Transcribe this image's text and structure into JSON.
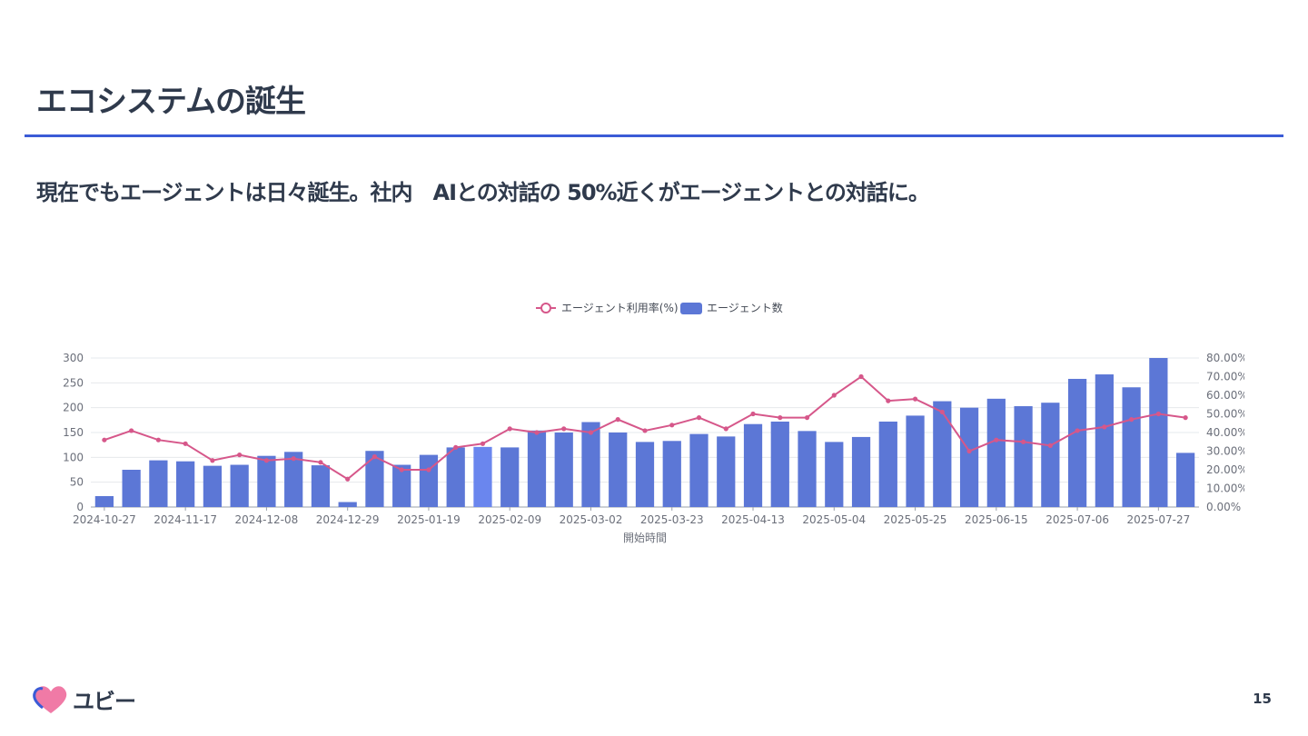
{
  "slide": {
    "title": "エコシステムの誕生",
    "subtitle": "現在でもエージェントは日々誕生。社内　AIとの対話の 50%近くがエージェントとの対話に。",
    "page_number": "15",
    "logo_text": "ユビー"
  },
  "colors": {
    "accent": "#3b5bd6",
    "bar": "#5c77d6",
    "bar_highlight": "#6a86ee",
    "line": "#d6578a",
    "text": "#2f3a4c"
  },
  "chart_data": {
    "type": "bar",
    "x": [
      "2024-10-27",
      "2024-11-03",
      "2024-11-10",
      "2024-11-17",
      "2024-11-24",
      "2024-12-01",
      "2024-12-08",
      "2024-12-15",
      "2024-12-22",
      "2024-12-29",
      "2025-01-05",
      "2025-01-12",
      "2025-01-19",
      "2025-01-26",
      "2025-02-02",
      "2025-02-09",
      "2025-02-16",
      "2025-02-23",
      "2025-03-02",
      "2025-03-09",
      "2025-03-16",
      "2025-03-23",
      "2025-03-30",
      "2025-04-06",
      "2025-04-13",
      "2025-04-20",
      "2025-04-27",
      "2025-05-04",
      "2025-05-11",
      "2025-05-18",
      "2025-05-25",
      "2025-06-01",
      "2025-06-08",
      "2025-06-15",
      "2025-06-22",
      "2025-06-29",
      "2025-07-06",
      "2025-07-13",
      "2025-07-20",
      "2025-07-27",
      "2025-08-03"
    ],
    "x_tick_labels": [
      "2024-10-27",
      "2024-11-17",
      "2024-12-08",
      "2024-12-29",
      "2025-01-19",
      "2025-02-09",
      "2025-03-02",
      "2025-03-23",
      "2025-04-13",
      "2025-05-04",
      "2025-05-25",
      "2025-06-15",
      "2025-07-06",
      "2025-07-27"
    ],
    "series": [
      {
        "name": "エージェント数",
        "type": "bar",
        "axis": "left",
        "values": [
          22,
          75,
          94,
          92,
          83,
          85,
          103,
          111,
          84,
          10,
          113,
          85,
          105,
          120,
          121,
          120,
          154,
          150,
          171,
          150,
          131,
          133,
          147,
          142,
          167,
          172,
          153,
          131,
          141,
          172,
          184,
          213,
          200,
          218,
          203,
          210,
          258,
          267,
          241,
          300,
          109
        ]
      },
      {
        "name": "エージェント利用率(%)",
        "type": "line",
        "axis": "right",
        "values": [
          36,
          41,
          36,
          34,
          25,
          28,
          25,
          26,
          24,
          15,
          27,
          20,
          20,
          32,
          34,
          42,
          40,
          42,
          40,
          47,
          41,
          44,
          48,
          42,
          50,
          48,
          48,
          60,
          70,
          57,
          58,
          51,
          30,
          36,
          35,
          33,
          41,
          43,
          47,
          50,
          48
        ]
      }
    ],
    "highlight_index": 14,
    "left_axis": {
      "ylim": [
        0,
        300
      ],
      "ticks": [
        "0",
        "50",
        "100",
        "150",
        "200",
        "250",
        "300"
      ]
    },
    "right_axis": {
      "ylim": [
        0,
        80
      ],
      "ticks": [
        "0.00%",
        "10.00%",
        "20.00%",
        "30.00%",
        "40.00%",
        "50.00%",
        "60.00%",
        "70.00%",
        "80.00%"
      ]
    },
    "xlabel": "開始時間",
    "ylabel": "",
    "grid": true,
    "legend_position": "top-center"
  }
}
